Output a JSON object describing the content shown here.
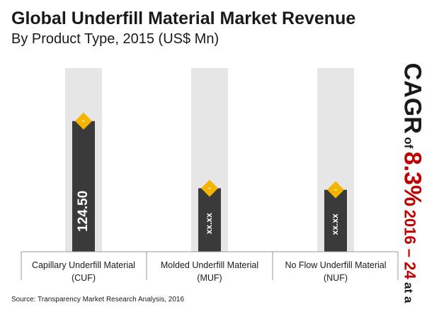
{
  "chart_data": {
    "type": "bar",
    "title": "Global Underfill Material Market Revenue",
    "subtitle": "By Product Type, 2015 (US$ Mn)",
    "categories": [
      {
        "line1": "Capillary Underfill Material",
        "line2": "(CUF)"
      },
      {
        "line1": "Molded Underfill Material",
        "line2": "(MUF)"
      },
      {
        "line1": "No Flow Underfill Material",
        "line2": "(NUF)"
      }
    ],
    "values": [
      124.5,
      60.5,
      59.0
    ],
    "value_labels": [
      "124.50",
      "xx.xx",
      "xx.xx"
    ],
    "ylim": [
      0,
      175
    ],
    "grid": false,
    "legend": "none"
  },
  "cagr": {
    "label": "CAGR",
    "of": "of",
    "rate": "8.3%",
    "period": "2016 – 24",
    "at_a": "at a"
  },
  "source": "Source: Transparency Market Research Analysis, 2016",
  "colors": {
    "bar": "#3a3a3a",
    "track": "#e6e6e6",
    "marker": "#f5b400",
    "accent": "#c00000"
  }
}
